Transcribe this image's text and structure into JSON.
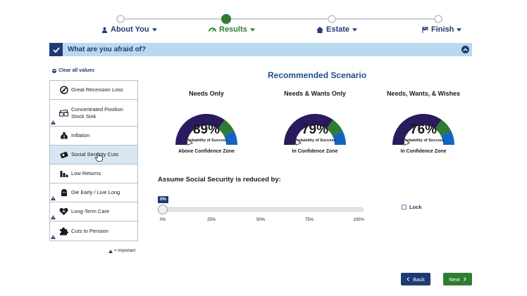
{
  "stepper": {
    "steps": [
      {
        "label": "About You",
        "icon": "user-icon"
      },
      {
        "label": "Results",
        "icon": "gauge-icon"
      },
      {
        "label": "Estate",
        "icon": "home-icon"
      },
      {
        "label": "Finish",
        "icon": "flag-icon"
      }
    ],
    "active_step": "Results"
  },
  "banner": {
    "title": "What are you afraid of?"
  },
  "sidebar": {
    "clear_all": "Clear all values",
    "items": [
      {
        "label": "Great Recession Loss",
        "icon": "no-symbol-icon",
        "important": false,
        "selected": false
      },
      {
        "label": "Concentrated Position Stock Sink",
        "icon": "money-stack-icon",
        "important": true,
        "selected": false
      },
      {
        "label": "Inflation",
        "icon": "money-bag-icon",
        "important": false,
        "selected": false
      },
      {
        "label": "Social Security Cuts",
        "icon": "social-security-card-icon",
        "important": false,
        "selected": true
      },
      {
        "label": "Low Returns",
        "icon": "bar-chart-icon",
        "important": false,
        "selected": false
      },
      {
        "label": "Die Early / Live Long",
        "icon": "person-icon",
        "important": true,
        "selected": false
      },
      {
        "label": "Long-Term Care",
        "icon": "heart-hand-icon",
        "important": true,
        "selected": false
      },
      {
        "label": "Cuts to Pension",
        "icon": "puzzle-icon",
        "important": true,
        "selected": false
      }
    ],
    "legend": "= important"
  },
  "scenario": {
    "title": "Recommended Scenario",
    "gauges": [
      {
        "heading": "Needs Only",
        "percent": "89%",
        "value": 89,
        "subtitle": "Probability of Success",
        "zone": "Above Confidence Zone"
      },
      {
        "heading": "Needs & Wants Only",
        "percent": "79%",
        "value": 79,
        "subtitle": "Probability of Success",
        "zone": "In Confidence Zone"
      },
      {
        "heading": "Needs, Wants, & Wishes",
        "percent": "76%",
        "value": 76,
        "subtitle": "Probability of Success",
        "zone": "In Confidence Zone"
      }
    ],
    "colors": {
      "low": "#2a1a5e",
      "mid": "#2e7d32",
      "high": "#1565c0",
      "needle": "#ffffff"
    }
  },
  "slider": {
    "label": "Assume Social Security is reduced by:",
    "value_label": "0%",
    "value": 0,
    "ticks": [
      "0%",
      "25%",
      "50%",
      "75%",
      "100%"
    ]
  },
  "lock": {
    "label": "Lock",
    "checked": false
  },
  "buttons": {
    "back": "Back",
    "next": "Next"
  }
}
